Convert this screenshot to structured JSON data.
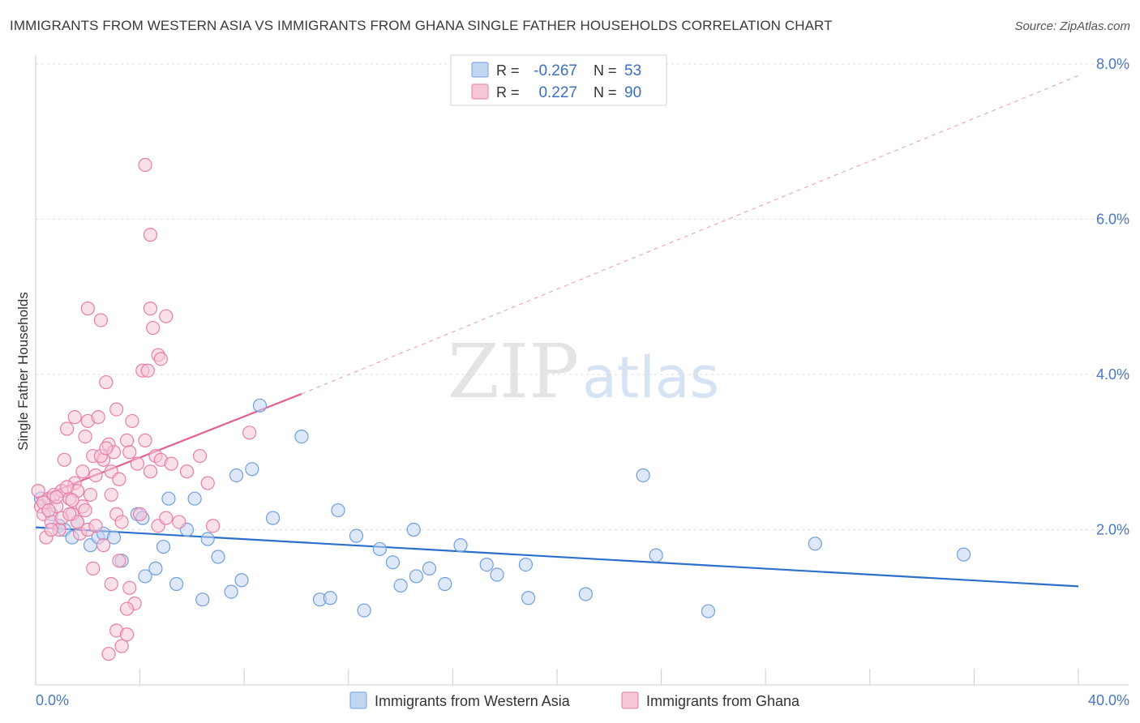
{
  "title": "IMMIGRANTS FROM WESTERN ASIA VS IMMIGRANTS FROM GHANA SINGLE FATHER HOUSEHOLDS CORRELATION CHART",
  "source": "Source: ZipAtlas.com",
  "watermark": {
    "zip": "ZIP",
    "atlas": "atlas"
  },
  "chart_data": {
    "type": "scatter",
    "xlabel": "",
    "ylabel": "Single Father Households",
    "xlim": [
      0,
      40
    ],
    "ylim": [
      0,
      8
    ],
    "x_tick_labels": [
      {
        "value": 0,
        "label": "0.0%"
      },
      {
        "value": 40,
        "label": "40.0%"
      }
    ],
    "y_tick_labels": [
      {
        "value": 2,
        "label": "2.0%"
      },
      {
        "value": 4,
        "label": "4.0%"
      },
      {
        "value": 6,
        "label": "6.0%"
      },
      {
        "value": 8,
        "label": "8.0%"
      }
    ],
    "legend_box": [
      {
        "series": "Immigrants from Western Asia",
        "r_label": "R =",
        "r_value": "-0.267",
        "n_label": "N =",
        "n_value": "53"
      },
      {
        "series": "Immigrants from Ghana",
        "r_label": "R =",
        "r_value": "0.227",
        "n_label": "N =",
        "n_value": "90"
      }
    ],
    "series": [
      {
        "name": "Immigrants from Western Asia",
        "color": "#6f9fe0",
        "fill": "#c2d6f2",
        "trend": {
          "x0": 0,
          "y0": 2.03,
          "x1": 40,
          "y1": 1.27
        },
        "points": [
          [
            0.2,
            2.4
          ],
          [
            0.6,
            2.2
          ],
          [
            0.9,
            2.05
          ],
          [
            1.1,
            2.0
          ],
          [
            1.4,
            1.9
          ],
          [
            1.6,
            2.1
          ],
          [
            2.1,
            1.8
          ],
          [
            2.4,
            1.9
          ],
          [
            2.6,
            1.95
          ],
          [
            3.0,
            1.9
          ],
          [
            3.3,
            1.6
          ],
          [
            3.9,
            2.2
          ],
          [
            4.2,
            1.4
          ],
          [
            4.6,
            1.5
          ],
          [
            4.9,
            1.78
          ],
          [
            5.1,
            2.4
          ],
          [
            5.4,
            1.3
          ],
          [
            5.8,
            2.0
          ],
          [
            6.1,
            2.4
          ],
          [
            6.4,
            1.1
          ],
          [
            6.6,
            1.88
          ],
          [
            7.0,
            1.65
          ],
          [
            7.5,
            1.2
          ],
          [
            7.7,
            2.7
          ],
          [
            7.9,
            1.35
          ],
          [
            8.3,
            2.78
          ],
          [
            8.6,
            3.6
          ],
          [
            9.1,
            2.15
          ],
          [
            10.2,
            3.2
          ],
          [
            10.9,
            1.1
          ],
          [
            11.3,
            1.12
          ],
          [
            11.6,
            2.25
          ],
          [
            12.3,
            1.92
          ],
          [
            12.6,
            0.96
          ],
          [
            13.2,
            1.75
          ],
          [
            13.7,
            1.58
          ],
          [
            14.0,
            1.28
          ],
          [
            14.5,
            2.0
          ],
          [
            14.6,
            1.4
          ],
          [
            15.1,
            1.5
          ],
          [
            15.7,
            1.3
          ],
          [
            16.3,
            1.8
          ],
          [
            17.3,
            1.55
          ],
          [
            17.7,
            1.42
          ],
          [
            18.8,
            1.55
          ],
          [
            18.9,
            1.12
          ],
          [
            21.1,
            1.17
          ],
          [
            23.3,
            2.7
          ],
          [
            23.8,
            1.67
          ],
          [
            25.8,
            0.95
          ],
          [
            29.9,
            1.82
          ],
          [
            35.6,
            1.68
          ],
          [
            4.1,
            2.15
          ]
        ]
      },
      {
        "name": "Immigrants from Ghana",
        "color": "#e87ea4",
        "fill": "#f6c7d7",
        "trend": {
          "x0": 0,
          "y0": 2.4,
          "x1": 10.2,
          "y1": 3.75
        },
        "trend_extension": {
          "x0": 10.2,
          "y0": 3.75,
          "x1": 40,
          "y1": 7.85
        },
        "points": [
          [
            0.1,
            2.5
          ],
          [
            0.2,
            2.3
          ],
          [
            0.3,
            2.2
          ],
          [
            0.4,
            1.9
          ],
          [
            0.5,
            2.4
          ],
          [
            0.6,
            2.1
          ],
          [
            0.7,
            2.45
          ],
          [
            0.8,
            2.3
          ],
          [
            0.9,
            2.0
          ],
          [
            1.0,
            2.5
          ],
          [
            1.1,
            2.9
          ],
          [
            1.2,
            3.3
          ],
          [
            1.3,
            2.4
          ],
          [
            1.4,
            2.2
          ],
          [
            1.5,
            2.6
          ],
          [
            1.6,
            2.5
          ],
          [
            1.7,
            1.95
          ],
          [
            1.8,
            2.3
          ],
          [
            1.9,
            3.2
          ],
          [
            2.0,
            2.0
          ],
          [
            0.3,
            2.35
          ],
          [
            0.5,
            2.25
          ],
          [
            0.8,
            2.42
          ],
          [
            1.0,
            2.15
          ],
          [
            1.2,
            2.55
          ],
          [
            1.4,
            2.38
          ],
          [
            1.6,
            2.1
          ],
          [
            1.9,
            2.25
          ],
          [
            2.1,
            2.45
          ],
          [
            2.3,
            2.05
          ],
          [
            1.5,
            3.45
          ],
          [
            1.8,
            2.75
          ],
          [
            2.0,
            3.4
          ],
          [
            2.2,
            2.95
          ],
          [
            2.4,
            3.45
          ],
          [
            2.6,
            2.9
          ],
          [
            2.8,
            3.1
          ],
          [
            2.9,
            2.75
          ],
          [
            3.0,
            3.0
          ],
          [
            3.2,
            2.65
          ],
          [
            2.3,
            2.7
          ],
          [
            2.5,
            2.95
          ],
          [
            2.7,
            3.05
          ],
          [
            2.9,
            2.45
          ],
          [
            3.1,
            2.2
          ],
          [
            3.3,
            2.1
          ],
          [
            3.5,
            3.15
          ],
          [
            3.6,
            3.0
          ],
          [
            3.7,
            3.4
          ],
          [
            3.9,
            2.85
          ],
          [
            3.1,
            3.55
          ],
          [
            4.0,
            2.2
          ],
          [
            4.2,
            3.15
          ],
          [
            4.4,
            2.75
          ],
          [
            4.6,
            2.95
          ],
          [
            4.8,
            2.9
          ],
          [
            2.0,
            4.85
          ],
          [
            2.5,
            4.7
          ],
          [
            2.2,
            1.5
          ],
          [
            2.9,
            1.3
          ],
          [
            3.2,
            1.6
          ],
          [
            3.6,
            1.25
          ],
          [
            3.8,
            1.05
          ],
          [
            4.1,
            4.05
          ],
          [
            4.3,
            4.05
          ],
          [
            4.5,
            4.6
          ],
          [
            4.7,
            4.25
          ],
          [
            4.8,
            4.2
          ],
          [
            5.0,
            4.75
          ],
          [
            4.4,
            4.85
          ],
          [
            2.7,
            3.9
          ],
          [
            3.3,
            0.5
          ],
          [
            3.5,
            0.98
          ],
          [
            2.8,
            0.4
          ],
          [
            3.1,
            0.7
          ],
          [
            3.5,
            0.65
          ],
          [
            4.2,
            6.7
          ],
          [
            4.4,
            5.8
          ],
          [
            5.8,
            2.75
          ],
          [
            6.3,
            2.95
          ],
          [
            6.6,
            2.6
          ],
          [
            6.8,
            2.05
          ],
          [
            4.7,
            2.05
          ],
          [
            5.0,
            2.15
          ],
          [
            5.2,
            2.85
          ],
          [
            5.5,
            2.1
          ],
          [
            0.6,
            2.0
          ],
          [
            1.3,
            2.2
          ],
          [
            2.6,
            1.8
          ],
          [
            8.2,
            3.25
          ]
        ]
      }
    ]
  }
}
